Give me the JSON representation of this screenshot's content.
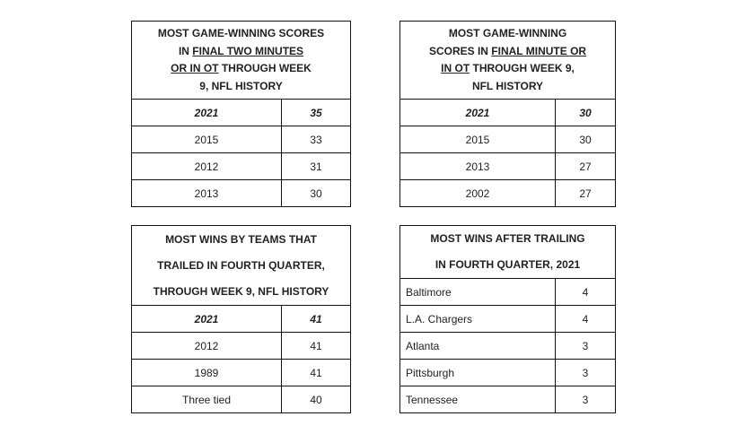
{
  "tables": {
    "t1": {
      "header": {
        "part1": "MOST GAME-WINNING SCORES",
        "part2": "IN ",
        "part3": "FINAL TWO MINUTES",
        "part4": "OR IN OT",
        "part5": " THROUGH WEEK",
        "part6": "9, NFL HISTORY"
      },
      "rows": [
        {
          "label": "2021",
          "value": "35"
        },
        {
          "label": "2015",
          "value": "33"
        },
        {
          "label": "2012",
          "value": "31"
        },
        {
          "label": "2013",
          "value": "30"
        }
      ]
    },
    "t2": {
      "header": {
        "part1": "MOST GAME-WINNING",
        "part2": "SCORES IN ",
        "part3": "FINAL MINUTE OR",
        "part4": "IN OT",
        "part5": " THROUGH WEEK 9,",
        "part6": "NFL HISTORY"
      },
      "rows": [
        {
          "label": "2021",
          "value": "30"
        },
        {
          "label": "2015",
          "value": "30"
        },
        {
          "label": "2013",
          "value": "27"
        },
        {
          "label": "2002",
          "value": "27"
        }
      ]
    },
    "t3": {
      "header": {
        "line1": "MOST WINS BY TEAMS THAT",
        "line2": "TRAILED IN FOURTH QUARTER,",
        "line3": "THROUGH WEEK 9, NFL HISTORY"
      },
      "rows": [
        {
          "label": "2021",
          "value": "41"
        },
        {
          "label": "2012",
          "value": "41"
        },
        {
          "label": "1989",
          "value": "41"
        },
        {
          "label": "Three tied",
          "value": "40"
        }
      ]
    },
    "t4": {
      "header": {
        "line1": "MOST WINS AFTER TRAILING",
        "line2": "IN FOURTH QUARTER, 2021"
      },
      "rows": [
        {
          "label": "Baltimore",
          "value": "4"
        },
        {
          "label": "L.A. Chargers",
          "value": "4"
        },
        {
          "label": "Atlanta",
          "value": "3"
        },
        {
          "label": "Pittsburgh",
          "value": "3"
        },
        {
          "label": "Tennessee",
          "value": "3"
        }
      ]
    }
  }
}
